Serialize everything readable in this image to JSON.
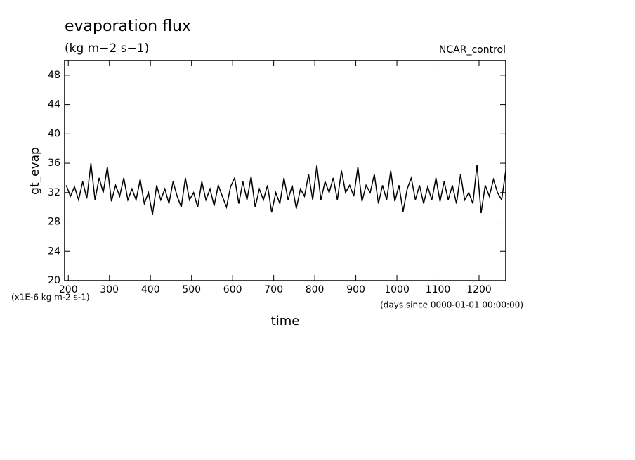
{
  "chart_data": {
    "type": "line",
    "title": "evaporation flux",
    "subtitle": "(kg m−2 s−1)",
    "annotation": "NCAR_control",
    "y_label": "gt_evap",
    "y_unit": "(x1E-6 kg m-2 s-1)",
    "x_unit": "(days since 0000-01-01 00:00:00)",
    "x_label": "time",
    "xlim": [
      191,
      1265
    ],
    "ylim": [
      20,
      50
    ],
    "xticks": [
      200,
      300,
      400,
      500,
      600,
      700,
      800,
      900,
      1000,
      1100,
      1200
    ],
    "yticks": [
      20,
      24,
      28,
      32,
      36,
      40,
      44,
      48
    ],
    "color": "#000000",
    "x": [
      195,
      205,
      215,
      225,
      235,
      245,
      255,
      265,
      275,
      285,
      295,
      305,
      315,
      325,
      335,
      345,
      355,
      365,
      375,
      385,
      395,
      405,
      415,
      425,
      435,
      445,
      455,
      465,
      475,
      485,
      495,
      505,
      515,
      525,
      535,
      545,
      555,
      565,
      575,
      585,
      595,
      605,
      615,
      625,
      635,
      645,
      655,
      665,
      675,
      685,
      695,
      705,
      715,
      725,
      735,
      745,
      755,
      765,
      775,
      785,
      795,
      805,
      815,
      825,
      835,
      845,
      855,
      865,
      875,
      885,
      895,
      905,
      915,
      925,
      935,
      945,
      955,
      965,
      975,
      985,
      995,
      1005,
      1015,
      1025,
      1035,
      1045,
      1055,
      1065,
      1075,
      1085,
      1095,
      1105,
      1115,
      1125,
      1135,
      1145,
      1155,
      1165,
      1175,
      1185,
      1195,
      1205,
      1215,
      1225,
      1235,
      1245,
      1255,
      1265
    ],
    "values": [
      33,
      31.5,
      32.8,
      31,
      33.5,
      31.2,
      36,
      31,
      34,
      32,
      35.5,
      30.8,
      33,
      31.5,
      34,
      31,
      32.5,
      31,
      33.8,
      30.5,
      32,
      29,
      33,
      31,
      32.5,
      30.5,
      33.5,
      31.5,
      30,
      34,
      31,
      32,
      30,
      33.5,
      31,
      32.5,
      30.2,
      33,
      31.5,
      30,
      32.8,
      34,
      30.5,
      33.5,
      31,
      34.2,
      30,
      32.5,
      31,
      33,
      29.3,
      32,
      30.5,
      34,
      31,
      33,
      29.8,
      32.5,
      31.5,
      34.5,
      31,
      35.7,
      31,
      33.5,
      32,
      34,
      31,
      35,
      32,
      33,
      31.5,
      35.5,
      30.8,
      33,
      32,
      34.5,
      30.5,
      33,
      31,
      35,
      30.8,
      33,
      29.4,
      32.5,
      34,
      31,
      33,
      30.5,
      32.8,
      31,
      34,
      30.8,
      33.5,
      31,
      33,
      30.5,
      34.5,
      31,
      32,
      30.5,
      35.8,
      29.2,
      33,
      31.5,
      33.8,
      32,
      31,
      35
    ]
  }
}
